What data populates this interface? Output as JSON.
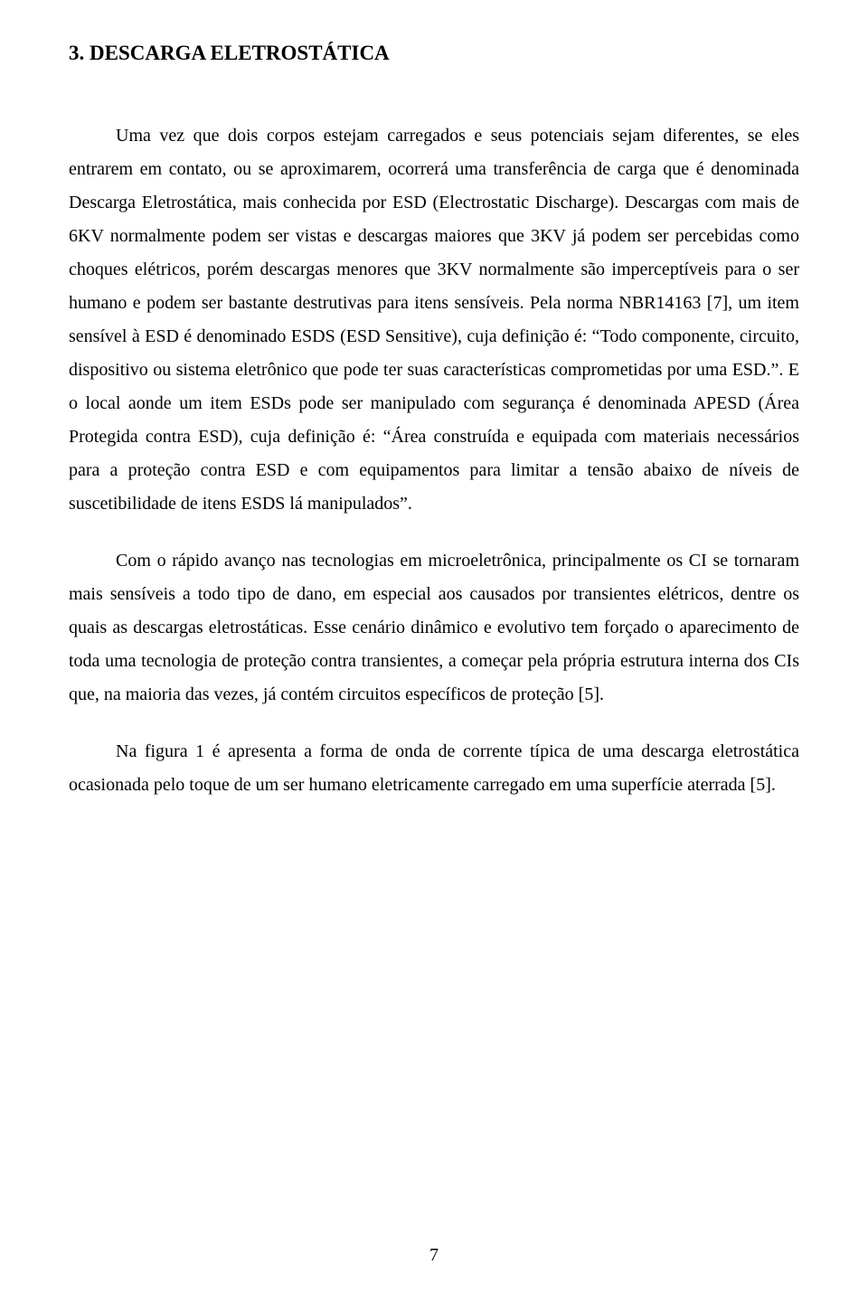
{
  "heading": "3. DESCARGA ELETROSTÁTICA",
  "paragraphs": [
    "Uma vez que dois corpos estejam carregados e seus potenciais sejam diferentes, se eles entrarem em contato, ou se aproximarem, ocorrerá uma transferência de carga que é denominada Descarga Eletrostática, mais conhecida por ESD (Electrostatic Discharge). Descargas com mais de 6KV normalmente podem ser vistas e descargas maiores que 3KV já podem ser percebidas como choques elétricos, porém descargas menores que 3KV normalmente são imperceptíveis para o ser humano e podem ser bastante destrutivas para itens sensíveis. Pela norma NBR14163 [7], um item sensível à ESD é denominado ESDS (ESD Sensitive), cuja definição é: “Todo componente, circuito, dispositivo ou sistema eletrônico que pode ter suas características comprometidas por uma ESD.”. E o local aonde um item ESDs pode ser manipulado com segurança é denominada APESD (Área Protegida contra ESD), cuja definição é: “Área construída e equipada com materiais necessários para a proteção contra ESD e com equipamentos para limitar a tensão abaixo de níveis de suscetibilidade de itens ESDS lá manipulados”.",
    "Com o rápido avanço nas tecnologias em microeletrônica, principalmente os CI se tornaram mais sensíveis a todo tipo de dano, em especial aos causados por transientes elétricos, dentre os quais as descargas eletrostáticas. Esse cenário dinâmico e evolutivo tem forçado o aparecimento de toda uma tecnologia de proteção contra transientes, a começar pela própria estrutura interna dos CIs que, na maioria das vezes, já contém circuitos específicos de proteção [5].",
    "Na figura 1 é apresenta a forma de onda de corrente típica de uma descarga eletrostática ocasionada pelo toque de um ser humano eletricamente carregado em uma superfície aterrada [5]."
  ],
  "pageNumber": "7"
}
